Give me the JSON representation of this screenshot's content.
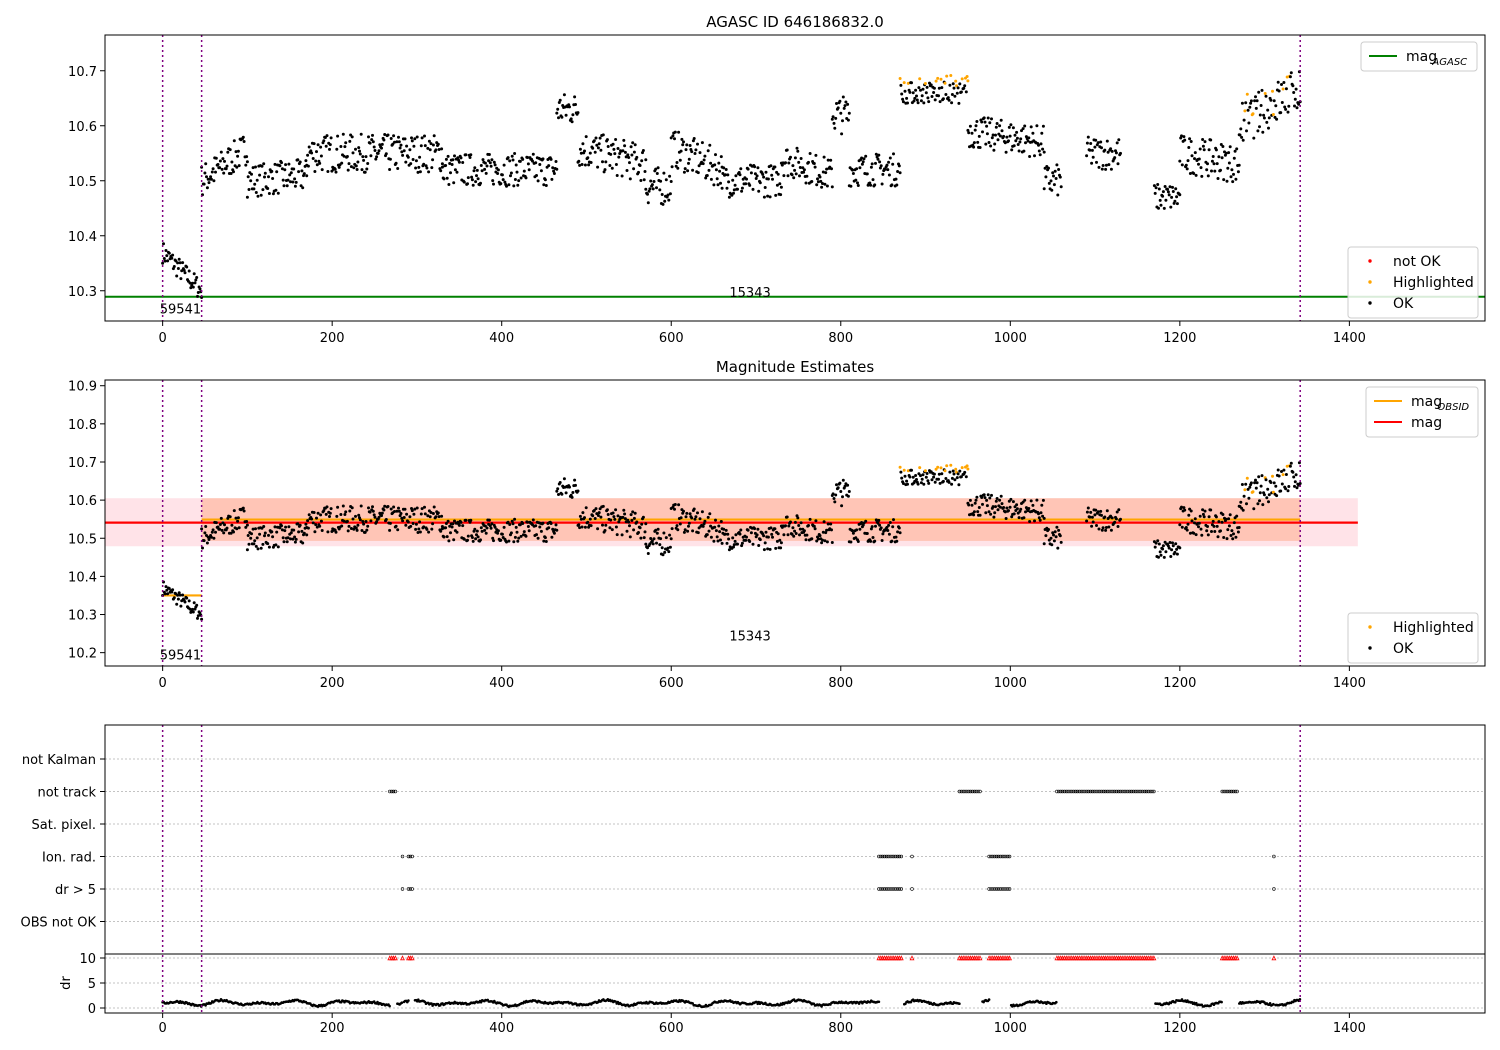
{
  "colors": {
    "ok": "#000000",
    "highlighted": "#ffa500",
    "not_ok": "#ff0000",
    "mag_agasc": "#008000",
    "mag": "#ff0000",
    "mag_obsid": "#ffa500",
    "obsid_line": "#800080",
    "band_pink": "#ffc0cb",
    "band_orange": "#ffa07a",
    "grid": "#b0b0b0"
  },
  "chart_data": [
    {
      "type": "scatter",
      "title": "AGASC ID 646186832.0",
      "xlim": [
        -68,
        1560
      ],
      "ylim": [
        10.245,
        10.765
      ],
      "xticks": [
        0,
        200,
        400,
        600,
        800,
        1000,
        1200,
        1400
      ],
      "yticks": [
        10.3,
        10.4,
        10.5,
        10.6,
        10.7
      ],
      "obsid_lines": [
        0,
        46,
        1342
      ],
      "obsid_labels": [
        {
          "text": "59541",
          "x": 21,
          "y": 10.268
        },
        {
          "text": "15343",
          "x": 693,
          "y": 10.298
        }
      ],
      "hlines": [
        {
          "name": "mag_AGASC",
          "y": 10.289,
          "color": "#008000"
        }
      ],
      "legend_upper": [
        {
          "label": "mag",
          "sub": "AGASC",
          "kind": "line",
          "color": "#008000"
        }
      ],
      "legend_lower": [
        {
          "label": "not OK",
          "kind": "dot",
          "color": "#ff0000"
        },
        {
          "label": "Highlighted",
          "kind": "dot",
          "color": "#ffa500"
        },
        {
          "label": "OK",
          "kind": "dot",
          "color": "#000000"
        }
      ],
      "segments": [
        {
          "x": [
            0,
            46
          ],
          "base": 10.37,
          "trend": -0.07,
          "amp": 0.02
        },
        {
          "x": [
            46,
            100
          ],
          "base": 10.5,
          "trend": 0.06,
          "amp": 0.03
        },
        {
          "x": [
            100,
            170
          ],
          "base": 10.5,
          "trend": 0.01,
          "amp": 0.03
        },
        {
          "x": [
            170,
            330
          ],
          "base": 10.55,
          "trend": 0.0,
          "amp": 0.035
        },
        {
          "x": [
            330,
            465
          ],
          "base": 10.52,
          "trend": 0.0,
          "amp": 0.03
        },
        {
          "x": [
            465,
            490
          ],
          "base": 10.63,
          "trend": 0.0,
          "amp": 0.03
        },
        {
          "x": [
            490,
            570
          ],
          "base": 10.56,
          "trend": -0.03,
          "amp": 0.035
        },
        {
          "x": [
            570,
            600
          ],
          "base": 10.49,
          "trend": 0.0,
          "amp": 0.035
        },
        {
          "x": [
            600,
            660
          ],
          "base": 10.56,
          "trend": -0.04,
          "amp": 0.035
        },
        {
          "x": [
            660,
            730
          ],
          "base": 10.5,
          "trend": 0.0,
          "amp": 0.03
        },
        {
          "x": [
            730,
            790
          ],
          "base": 10.54,
          "trend": -0.03,
          "amp": 0.03
        },
        {
          "x": [
            790,
            810
          ],
          "base": 10.62,
          "trend": 0.0,
          "amp": 0.035
        },
        {
          "x": [
            810,
            870
          ],
          "base": 10.52,
          "trend": 0.0,
          "amp": 0.03
        },
        {
          "x": [
            870,
            950
          ],
          "base": 10.66,
          "trend": 0.0,
          "amp": 0.02,
          "hi": 0.35
        },
        {
          "x": [
            950,
            1040
          ],
          "base": 10.59,
          "trend": -0.02,
          "amp": 0.03
        },
        {
          "x": [
            1040,
            1060
          ],
          "base": 10.5,
          "trend": 0.0,
          "amp": 0.03
        },
        {
          "x": [
            1090,
            1130
          ],
          "base": 10.55,
          "trend": 0.0,
          "amp": 0.03
        },
        {
          "x": [
            1170,
            1200
          ],
          "base": 10.47,
          "trend": 0.0,
          "amp": 0.025
        },
        {
          "x": [
            1200,
            1270
          ],
          "base": 10.55,
          "trend": -0.02,
          "amp": 0.035
        },
        {
          "x": [
            1270,
            1342
          ],
          "base": 10.6,
          "trend": 0.07,
          "amp": 0.04,
          "hi": 0.15
        }
      ]
    },
    {
      "type": "scatter",
      "title": "Magnitude Estimates",
      "xlim": [
        -68,
        1560
      ],
      "ylim": [
        10.165,
        10.915
      ],
      "xticks": [
        0,
        200,
        400,
        600,
        800,
        1000,
        1200,
        1400
      ],
      "yticks": [
        10.2,
        10.3,
        10.4,
        10.5,
        10.6,
        10.7,
        10.8,
        10.9
      ],
      "obsid_lines": [
        0,
        46,
        1342
      ],
      "obsid_labels": [
        {
          "text": "59541",
          "x": 21,
          "y": 10.195
        },
        {
          "text": "15343",
          "x": 693,
          "y": 10.245
        }
      ],
      "bands": [
        {
          "x": [
            -68,
            1410
          ],
          "y": [
            10.479,
            10.605
          ],
          "color": "#ffc0cb"
        },
        {
          "x": [
            46,
            1342
          ],
          "y": [
            10.493,
            10.605
          ],
          "color": "#ffa07a"
        }
      ],
      "hsegments": [
        {
          "x": [
            -68,
            1410
          ],
          "y": 10.541,
          "color": "#ff0000"
        },
        {
          "x": [
            0,
            46
          ],
          "y": 10.35,
          "color": "#ffa500"
        },
        {
          "x": [
            46,
            1342
          ],
          "y": 10.549,
          "color": "#ffa500"
        }
      ],
      "legend_upper": [
        {
          "label": "mag",
          "sub": "OBSID",
          "kind": "line",
          "color": "#ffa500"
        },
        {
          "label": "mag",
          "kind": "line",
          "color": "#ff0000"
        }
      ],
      "legend_lower": [
        {
          "label": "Highlighted",
          "kind": "dot",
          "color": "#ffa500"
        },
        {
          "label": "OK",
          "kind": "dot",
          "color": "#000000"
        }
      ],
      "segments_ref": 0
    },
    {
      "type": "scatter",
      "title": "",
      "xlim": [
        -68,
        1560
      ],
      "xticks": [
        0,
        200,
        400,
        600,
        800,
        1000,
        1200,
        1400
      ],
      "obsid_lines": [
        0,
        46,
        1342
      ],
      "flag_rows": [
        "not Kalman",
        "not track",
        "Sat. pixel.",
        "Ion. rad.",
        "dr > 5",
        "OBS not OK"
      ],
      "flags": [
        {
          "row": "not track",
          "ranges": [
            [
              268,
              275
            ],
            [
              940,
              965
            ],
            [
              1055,
              1170
            ],
            [
              1250,
              1268
            ]
          ]
        },
        {
          "row": "Ion. rad.",
          "ranges": [
            [
              283,
              283
            ],
            [
              290,
              296
            ],
            [
              845,
              873
            ],
            [
              884,
              884
            ],
            [
              975,
              1000
            ],
            [
              1311,
              1311
            ]
          ]
        },
        {
          "row": "dr > 5",
          "ranges": [
            [
              283,
              283
            ],
            [
              290,
              296
            ],
            [
              845,
              873
            ],
            [
              884,
              884
            ],
            [
              975,
              1000
            ],
            [
              1311,
              1311
            ]
          ]
        }
      ],
      "dr_panel": {
        "ylabel": "dr",
        "yticks": [
          0,
          5,
          10
        ],
        "ylim": [
          -1,
          10.8
        ],
        "saturated": 10,
        "saturated_ranges": [
          [
            268,
            275
          ],
          [
            283,
            283
          ],
          [
            290,
            296
          ],
          [
            845,
            873
          ],
          [
            884,
            884
          ],
          [
            940,
            965
          ],
          [
            975,
            1000
          ],
          [
            1055,
            1170
          ],
          [
            1250,
            1268
          ],
          [
            1311,
            1311
          ]
        ]
      }
    }
  ]
}
